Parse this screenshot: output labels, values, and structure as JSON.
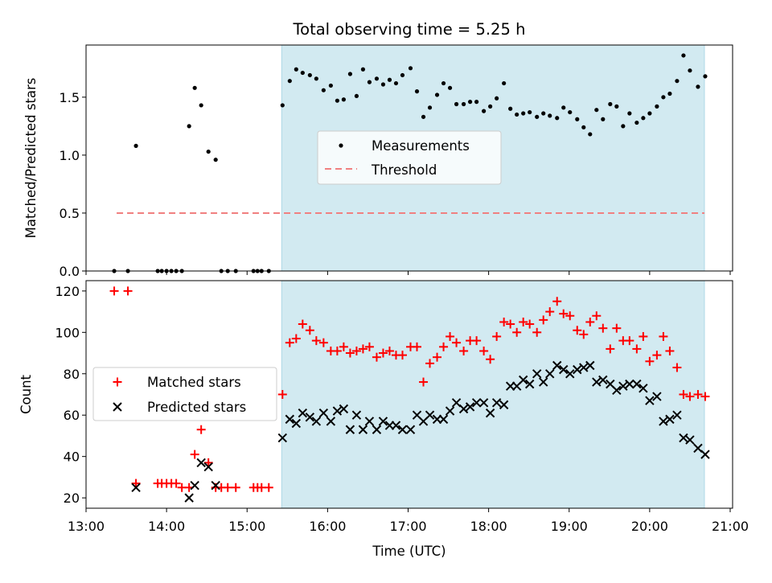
{
  "chart_data": [
    {
      "type": "scatter",
      "title": "Total observing time = 5.25 h",
      "xlabel": "",
      "ylabel": "Matched/Predicted stars",
      "xlim": [
        13.0,
        21.03
      ],
      "ylim": [
        0,
        1.95
      ],
      "yticks": [
        0.0,
        0.5,
        1.0,
        1.5
      ],
      "ytick_labels": [
        "0.0",
        "0.5",
        "1.0",
        "1.5"
      ],
      "grid": false,
      "legend_position": "center",
      "observing_window": {
        "start": 15.43,
        "end": 20.68,
        "color": "#add8e6"
      },
      "threshold": {
        "name": "Threshold",
        "value": 0.5,
        "x_start": 13.38,
        "x_end": 20.68,
        "color": "#f08080",
        "style": "dashed"
      },
      "series": [
        {
          "name": "Measurements",
          "color": "#000000",
          "marker": "dot",
          "x": [
            13.35,
            13.52,
            13.62,
            13.89,
            13.94,
            14.0,
            14.06,
            14.12,
            14.19,
            14.28,
            14.35,
            14.43,
            14.52,
            14.61,
            14.68,
            14.76,
            14.86,
            15.08,
            15.13,
            15.18,
            15.27,
            15.44,
            15.53,
            15.61,
            15.69,
            15.78,
            15.86,
            15.95,
            16.04,
            16.12,
            16.2,
            16.28,
            16.36,
            16.44,
            16.52,
            16.61,
            16.69,
            16.77,
            16.85,
            16.93,
            17.03,
            17.11,
            17.19,
            17.27,
            17.36,
            17.44,
            17.52,
            17.6,
            17.69,
            17.77,
            17.85,
            17.94,
            18.02,
            18.1,
            18.19,
            18.27,
            18.35,
            18.43,
            18.51,
            18.6,
            18.68,
            18.76,
            18.85,
            18.93,
            19.01,
            19.1,
            19.18,
            19.26,
            19.34,
            19.42,
            19.51,
            19.59,
            19.67,
            19.75,
            19.84,
            19.92,
            20.0,
            20.09,
            20.17,
            20.25,
            20.34,
            20.42,
            20.5,
            20.6,
            20.69
          ],
          "y": [
            0,
            0,
            1.08,
            0,
            0,
            0,
            0,
            0,
            0,
            1.25,
            1.58,
            1.43,
            1.03,
            0.96,
            0,
            0,
            0,
            0,
            0,
            0,
            0,
            1.43,
            1.64,
            1.74,
            1.71,
            1.69,
            1.66,
            1.56,
            1.6,
            1.47,
            1.48,
            1.7,
            1.51,
            1.74,
            1.63,
            1.66,
            1.61,
            1.65,
            1.62,
            1.69,
            1.75,
            1.55,
            1.33,
            1.41,
            1.52,
            1.62,
            1.58,
            1.44,
            1.44,
            1.46,
            1.46,
            1.38,
            1.42,
            1.49,
            1.62,
            1.4,
            1.35,
            1.36,
            1.37,
            1.33,
            1.36,
            1.34,
            1.32,
            1.41,
            1.37,
            1.31,
            1.24,
            1.18,
            1.39,
            1.31,
            1.44,
            1.42,
            1.25,
            1.36,
            1.28,
            1.32,
            1.36,
            1.42,
            1.5,
            1.53,
            1.64,
            1.86,
            1.73,
            1.59,
            1.68
          ]
        }
      ]
    },
    {
      "type": "scatter",
      "title": "",
      "xlabel": "Time (UTC)",
      "ylabel": "Count",
      "xlim": [
        13.0,
        21.03
      ],
      "ylim": [
        15,
        125
      ],
      "xticks": [
        13,
        14,
        15,
        16,
        17,
        18,
        19,
        20,
        21
      ],
      "xtick_labels": [
        "13:00",
        "14:00",
        "15:00",
        "16:00",
        "17:00",
        "18:00",
        "19:00",
        "20:00",
        "21:00"
      ],
      "yticks": [
        20,
        40,
        60,
        80,
        100,
        120
      ],
      "ytick_labels": [
        "20",
        "40",
        "60",
        "80",
        "100",
        "120"
      ],
      "grid": false,
      "legend_position": "center-left",
      "observing_window": {
        "start": 15.43,
        "end": 20.68,
        "color": "#add8e6"
      },
      "series": [
        {
          "name": "Matched stars",
          "color": "#ff0000",
          "marker": "plus",
          "x": [
            13.35,
            13.52,
            13.62,
            13.89,
            13.94,
            14.0,
            14.06,
            14.12,
            14.19,
            14.28,
            14.35,
            14.43,
            14.52,
            14.61,
            14.68,
            14.76,
            14.86,
            15.08,
            15.13,
            15.18,
            15.27,
            15.44,
            15.53,
            15.61,
            15.69,
            15.78,
            15.86,
            15.95,
            16.04,
            16.12,
            16.2,
            16.28,
            16.36,
            16.44,
            16.52,
            16.61,
            16.69,
            16.77,
            16.85,
            16.93,
            17.03,
            17.11,
            17.19,
            17.27,
            17.36,
            17.44,
            17.52,
            17.6,
            17.69,
            17.77,
            17.85,
            17.94,
            18.02,
            18.1,
            18.19,
            18.27,
            18.35,
            18.43,
            18.51,
            18.6,
            18.68,
            18.76,
            18.85,
            18.93,
            19.01,
            19.1,
            19.18,
            19.26,
            19.34,
            19.42,
            19.51,
            19.59,
            19.67,
            19.75,
            19.84,
            19.92,
            20.0,
            20.09,
            20.17,
            20.25,
            20.34,
            20.42,
            20.5,
            20.6,
            20.69
          ],
          "y": [
            120,
            120,
            27,
            27,
            27,
            27,
            27,
            27,
            25,
            25,
            41,
            53,
            37,
            25,
            25,
            25,
            25,
            25,
            25,
            25,
            25,
            70,
            95,
            97,
            104,
            101,
            96,
            95,
            91,
            91,
            93,
            90,
            91,
            92,
            93,
            88,
            90,
            91,
            89,
            89,
            93,
            93,
            76,
            85,
            88,
            93,
            98,
            95,
            91,
            96,
            96,
            91,
            87,
            98,
            105,
            104,
            100,
            105,
            104,
            100,
            106,
            110,
            115,
            109,
            108,
            101,
            99,
            105,
            108,
            102,
            92,
            102,
            96,
            96,
            92,
            98,
            86,
            89,
            98,
            91,
            83,
            70,
            69,
            70,
            69
          ],
          "y_note": ""
        },
        {
          "name": "Predicted stars",
          "color": "#000000",
          "marker": "x",
          "x": [
            13.62,
            14.28,
            14.35,
            14.43,
            14.52,
            14.61,
            15.44,
            15.53,
            15.61,
            15.69,
            15.78,
            15.86,
            15.95,
            16.04,
            16.12,
            16.2,
            16.28,
            16.36,
            16.44,
            16.52,
            16.61,
            16.69,
            16.77,
            16.85,
            16.93,
            17.03,
            17.11,
            17.19,
            17.27,
            17.36,
            17.44,
            17.52,
            17.6,
            17.69,
            17.77,
            17.85,
            17.94,
            18.02,
            18.1,
            18.19,
            18.27,
            18.35,
            18.43,
            18.51,
            18.6,
            18.68,
            18.76,
            18.85,
            18.93,
            19.01,
            19.1,
            19.18,
            19.26,
            19.34,
            19.42,
            19.51,
            19.59,
            19.67,
            19.75,
            19.84,
            19.92,
            20.0,
            20.09,
            20.17,
            20.25,
            20.34,
            20.42,
            20.5,
            20.6,
            20.69
          ],
          "y": [
            25,
            20,
            26,
            37,
            35,
            26,
            49,
            58,
            56,
            61,
            59,
            57,
            61,
            57,
            62,
            63,
            53,
            60,
            53,
            57,
            53,
            57,
            55,
            55,
            53,
            53,
            60,
            57,
            60,
            58,
            58,
            62,
            66,
            63,
            64,
            66,
            66,
            61,
            66,
            65,
            74,
            74,
            77,
            75,
            80,
            76,
            80,
            84,
            82,
            80,
            82,
            83,
            84,
            76,
            77,
            75,
            72,
            74,
            75,
            75,
            73,
            67,
            69,
            57,
            58,
            60,
            49,
            48,
            44,
            41
          ]
        }
      ]
    }
  ]
}
